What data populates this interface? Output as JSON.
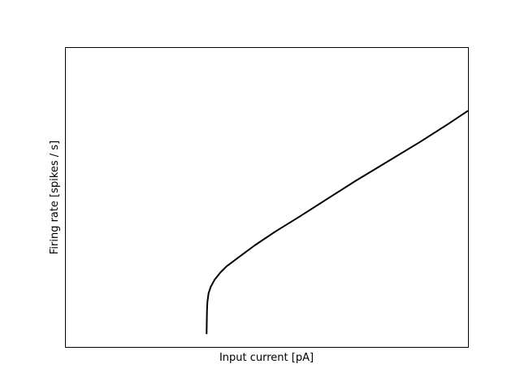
{
  "chart_data": {
    "type": "line",
    "title": "",
    "xlabel": "Input current [pA]",
    "ylabel": "Firing rate [spikes / s]",
    "x_ticks": [],
    "y_ticks": [],
    "grid": false,
    "legend": null,
    "xlim": [
      0,
      1
    ],
    "ylim": [
      0,
      1
    ],
    "series": [
      {
        "color": "#000000",
        "x": [
          0.35,
          0.351,
          0.352,
          0.355,
          0.36,
          0.37,
          0.385,
          0.4,
          0.43,
          0.47,
          0.52,
          0.58,
          0.65,
          0.72,
          0.8,
          0.88,
          0.95,
          1.0
        ],
        "y": [
          0.043,
          0.12,
          0.15,
          0.18,
          0.2,
          0.225,
          0.25,
          0.27,
          0.3,
          0.34,
          0.385,
          0.435,
          0.495,
          0.555,
          0.62,
          0.685,
          0.745,
          0.79
        ]
      }
    ]
  }
}
